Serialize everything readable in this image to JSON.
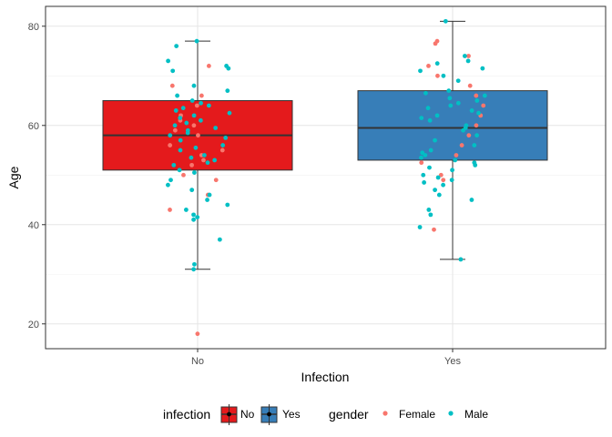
{
  "chart_data": {
    "type": "box",
    "xlabel": "Infection",
    "ylabel": "Age",
    "ylim": [
      15,
      84
    ],
    "yticks": [
      20,
      40,
      60,
      80
    ],
    "grid": true,
    "legend_placement": "bottom",
    "categories": [
      "No",
      "Yes"
    ],
    "boxes": [
      {
        "category": "No",
        "fill": "#e41a1c",
        "whisker_low": 31,
        "q1": 51,
        "median": 58,
        "q3": 65,
        "whisker_high": 77
      },
      {
        "category": "Yes",
        "fill": "#377eb8",
        "whisker_low": 33,
        "q1": 53,
        "median": 59.5,
        "q3": 67,
        "whisker_high": 81
      }
    ],
    "points": {
      "No": {
        "Female": [
          64,
          66,
          68,
          62,
          60,
          58,
          56,
          55,
          53,
          52,
          50,
          49,
          46,
          43,
          18,
          61,
          72,
          59,
          54
        ],
        "Male": [
          77,
          76,
          73,
          72,
          71.5,
          71,
          68,
          67,
          66,
          65,
          64.5,
          64,
          63.5,
          63,
          62.5,
          62,
          61.5,
          61,
          60.5,
          60,
          59.5,
          59,
          58.5,
          58,
          57.5,
          57,
          56,
          55.5,
          55,
          54,
          53.5,
          53,
          52.5,
          52,
          51,
          50.5,
          49,
          48,
          47,
          46,
          45,
          44,
          43,
          42,
          41.5,
          41,
          37,
          32,
          31
        ]
      },
      "Yes": {
        "Female": [
          77,
          76.5,
          74,
          72,
          70,
          68,
          66,
          64,
          62,
          60,
          58,
          56,
          54,
          52.5,
          50,
          49,
          39
        ],
        "Male": [
          81,
          74,
          73,
          72.5,
          71.5,
          71,
          70,
          69,
          67,
          66.5,
          66,
          65.5,
          65,
          64.5,
          64,
          63.5,
          63,
          62.5,
          62,
          61.5,
          61,
          60,
          59.5,
          59,
          58,
          57,
          56,
          55,
          54.5,
          54,
          53.5,
          53,
          52.5,
          52,
          51.5,
          51,
          50,
          49.5,
          49,
          48.5,
          48,
          47,
          46,
          45,
          43,
          42,
          39.5,
          33
        ]
      }
    },
    "legends": [
      {
        "title": "infection",
        "items": [
          {
            "label": "No",
            "color": "#e41a1c"
          },
          {
            "label": "Yes",
            "color": "#377eb8"
          }
        ]
      },
      {
        "title": "gender",
        "items": [
          {
            "label": "Female",
            "color": "#f8766d"
          },
          {
            "label": "Male",
            "color": "#00bfc4"
          }
        ]
      }
    ]
  }
}
